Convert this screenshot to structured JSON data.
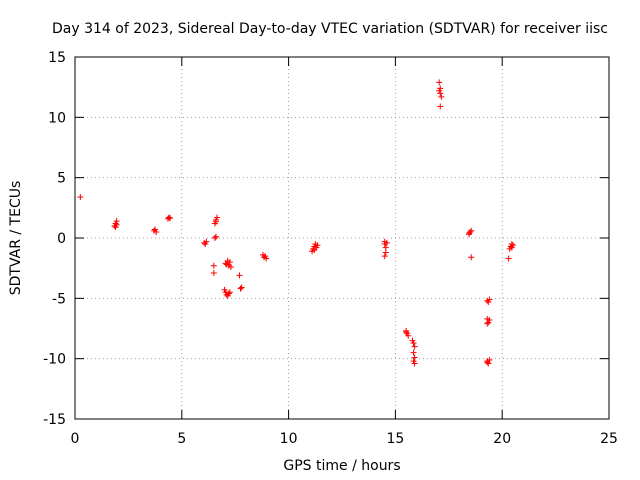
{
  "chart_data": {
    "type": "scatter",
    "title": "Day 314 of 2023, Sidereal Day-to-day VTEC variation (SDTVAR) for receiver iisc",
    "xlabel": "GPS time / hours",
    "ylabel": "SDTVAR / TECUs",
    "xlim": [
      0,
      25
    ],
    "ylim": [
      -15,
      15
    ],
    "xticks": [
      0,
      5,
      10,
      15,
      20,
      25
    ],
    "yticks": [
      -15,
      -10,
      -5,
      0,
      5,
      10,
      15
    ],
    "grid": true,
    "marker": "plus",
    "color": "#ff0000",
    "series": [
      {
        "name": "SDTVAR",
        "points": [
          [
            0.25,
            3.4
          ],
          [
            1.85,
            1.0
          ],
          [
            1.9,
            1.2
          ],
          [
            1.95,
            1.4
          ],
          [
            1.9,
            0.9
          ],
          [
            1.95,
            1.1
          ],
          [
            3.7,
            0.6
          ],
          [
            3.75,
            0.7
          ],
          [
            3.8,
            0.5
          ],
          [
            4.35,
            1.6
          ],
          [
            4.4,
            1.7
          ],
          [
            4.45,
            1.65
          ],
          [
            6.05,
            -0.4
          ],
          [
            6.1,
            -0.5
          ],
          [
            6.15,
            -0.3
          ],
          [
            6.5,
            -2.9
          ],
          [
            6.5,
            -2.3
          ],
          [
            6.55,
            0.0
          ],
          [
            6.6,
            0.1
          ],
          [
            6.55,
            1.2
          ],
          [
            6.6,
            1.5
          ],
          [
            6.65,
            1.7
          ],
          [
            6.6,
            1.35
          ],
          [
            7.0,
            -4.3
          ],
          [
            7.05,
            -4.5
          ],
          [
            7.1,
            -4.7
          ],
          [
            7.15,
            -4.8
          ],
          [
            7.2,
            -4.6
          ],
          [
            7.25,
            -4.5
          ],
          [
            7.05,
            -2.1
          ],
          [
            7.1,
            -2.2
          ],
          [
            7.15,
            -1.9
          ],
          [
            7.2,
            -2.3
          ],
          [
            7.25,
            -2.0
          ],
          [
            7.3,
            -2.4
          ],
          [
            7.7,
            -3.1
          ],
          [
            7.75,
            -4.2
          ],
          [
            7.8,
            -4.1
          ],
          [
            8.8,
            -1.4
          ],
          [
            8.85,
            -1.6
          ],
          [
            8.9,
            -1.5
          ],
          [
            8.95,
            -1.7
          ],
          [
            11.1,
            -1.1
          ],
          [
            11.15,
            -0.9
          ],
          [
            11.2,
            -0.7
          ],
          [
            11.25,
            -0.5
          ],
          [
            11.3,
            -0.8
          ],
          [
            11.35,
            -0.6
          ],
          [
            11.2,
            -1.0
          ],
          [
            14.5,
            -0.3
          ],
          [
            14.5,
            -0.5
          ],
          [
            14.55,
            -0.8
          ],
          [
            14.55,
            -1.2
          ],
          [
            14.5,
            -1.5
          ],
          [
            14.6,
            -0.4
          ],
          [
            15.5,
            -7.7
          ],
          [
            15.55,
            -7.9
          ],
          [
            15.6,
            -8.1
          ],
          [
            15.5,
            -7.8
          ],
          [
            15.8,
            -8.5
          ],
          [
            15.85,
            -8.7
          ],
          [
            15.9,
            -9.0
          ],
          [
            15.85,
            -9.5
          ],
          [
            15.9,
            -9.9
          ],
          [
            15.85,
            -10.2
          ],
          [
            15.9,
            -10.4
          ],
          [
            17.05,
            12.9
          ],
          [
            17.1,
            12.4
          ],
          [
            17.05,
            12.2
          ],
          [
            17.1,
            12.0
          ],
          [
            17.15,
            11.7
          ],
          [
            17.1,
            10.9
          ],
          [
            18.45,
            0.3
          ],
          [
            18.5,
            0.5
          ],
          [
            18.55,
            0.6
          ],
          [
            18.45,
            0.4
          ],
          [
            18.55,
            -1.6
          ],
          [
            19.3,
            -5.2
          ],
          [
            19.35,
            -5.3
          ],
          [
            19.4,
            -5.1
          ],
          [
            19.3,
            -6.7
          ],
          [
            19.35,
            -7.0
          ],
          [
            19.4,
            -6.8
          ],
          [
            19.3,
            -7.1
          ],
          [
            19.3,
            -10.2
          ],
          [
            19.35,
            -10.4
          ],
          [
            19.4,
            -10.1
          ],
          [
            19.3,
            -10.3
          ],
          [
            20.3,
            -1.7
          ],
          [
            20.35,
            -0.9
          ],
          [
            20.4,
            -0.7
          ],
          [
            20.45,
            -0.5
          ],
          [
            20.5,
            -0.6
          ],
          [
            20.45,
            -0.8
          ]
        ]
      }
    ]
  }
}
